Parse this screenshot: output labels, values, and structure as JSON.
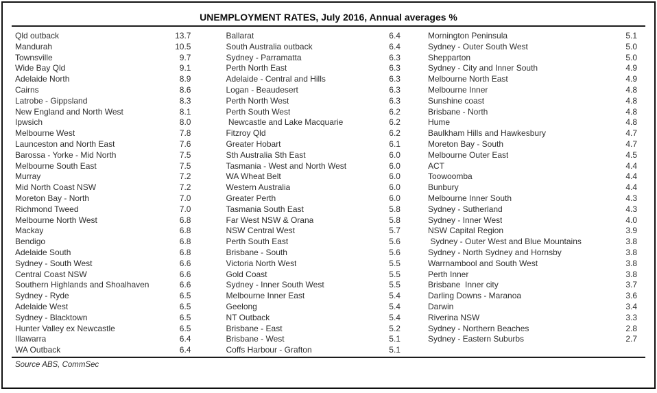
{
  "chart_data": {
    "type": "table",
    "title": "UNEMPLOYMENT RATES, July 2016, Annual averages %",
    "unit": "%",
    "source": "Source ABS, CommSec",
    "columns": [
      {
        "rows": [
          {
            "region": "Qld outback",
            "value": "13.7"
          },
          {
            "region": "Mandurah",
            "value": "10.5"
          },
          {
            "region": "Townsville",
            "value": "9.7"
          },
          {
            "region": "Wide Bay Qld",
            "value": "9.1"
          },
          {
            "region": "Adelaide North",
            "value": "8.9"
          },
          {
            "region": "Cairns",
            "value": "8.6"
          },
          {
            "region": "Latrobe - Gippsland",
            "value": "8.3"
          },
          {
            "region": "New England and North West",
            "value": "8.1"
          },
          {
            "region": "Ipwsich",
            "value": "8.0"
          },
          {
            "region": "Melbourne West",
            "value": "7.8"
          },
          {
            "region": "Launceston and North East",
            "value": "7.6"
          },
          {
            "region": "Barossa - Yorke - Mid North",
            "value": "7.5"
          },
          {
            "region": "Melbourne South East",
            "value": "7.5"
          },
          {
            "region": "Murray",
            "value": "7.2"
          },
          {
            "region": "Mid North Coast NSW",
            "value": "7.2"
          },
          {
            "region": "Moreton Bay - North",
            "value": "7.0"
          },
          {
            "region": "Richmond Tweed",
            "value": "7.0"
          },
          {
            "region": "Melbourne North West",
            "value": "6.8"
          },
          {
            "region": "Mackay",
            "value": "6.8"
          },
          {
            "region": "Bendigo",
            "value": "6.8"
          },
          {
            "region": "Adelaide South",
            "value": "6.8"
          },
          {
            "region": "Sydney - South West",
            "value": "6.6"
          },
          {
            "region": "Central Coast NSW",
            "value": "6.6"
          },
          {
            "region": "Southern Highlands and Shoalhaven",
            "value": "6.6"
          },
          {
            "region": "Sydney - Ryde",
            "value": "6.5"
          },
          {
            "region": "Adelaide West",
            "value": "6.5"
          },
          {
            "region": "Sydney - Blacktown",
            "value": "6.5"
          },
          {
            "region": "Hunter Valley ex Newcastle",
            "value": "6.5"
          },
          {
            "region": "Illawarra",
            "value": "6.4"
          },
          {
            "region": "WA Outback",
            "value": "6.4"
          }
        ]
      },
      {
        "rows": [
          {
            "region": "Ballarat",
            "value": "6.4"
          },
          {
            "region": "South Australia outback",
            "value": "6.4"
          },
          {
            "region": "Sydney - Parramatta",
            "value": "6.3"
          },
          {
            "region": "Perth North East",
            "value": "6.3"
          },
          {
            "region": "Adelaide - Central and Hills",
            "value": "6.3"
          },
          {
            "region": "Logan - Beaudesert",
            "value": "6.3"
          },
          {
            "region": "Perth North West",
            "value": "6.3"
          },
          {
            "region": "Perth South West",
            "value": "6.2"
          },
          {
            "region": " Newcastle and Lake Macquarie",
            "value": "6.2"
          },
          {
            "region": "Fitzroy Qld",
            "value": "6.2"
          },
          {
            "region": "Greater Hobart",
            "value": "6.1"
          },
          {
            "region": "Sth Australia Sth East",
            "value": "6.0"
          },
          {
            "region": "Tasmania - West and North West",
            "value": "6.0"
          },
          {
            "region": "WA Wheat Belt",
            "value": "6.0"
          },
          {
            "region": "Western Australia",
            "value": "6.0"
          },
          {
            "region": "Greater Perth",
            "value": "6.0"
          },
          {
            "region": "Tasmania South East",
            "value": "5.8"
          },
          {
            "region": "Far West NSW & Orana",
            "value": "5.8"
          },
          {
            "region": "NSW Central West",
            "value": "5.7"
          },
          {
            "region": "Perth South East",
            "value": "5.6"
          },
          {
            "region": "Brisbane - South",
            "value": "5.6"
          },
          {
            "region": "Victoria North West",
            "value": "5.5"
          },
          {
            "region": "Gold Coast",
            "value": "5.5"
          },
          {
            "region": "Sydney - Inner South West",
            "value": "5.5"
          },
          {
            "region": "Melbourne Inner East",
            "value": "5.4"
          },
          {
            "region": "Geelong",
            "value": "5.4"
          },
          {
            "region": "NT Outback",
            "value": "5.4"
          },
          {
            "region": "Brisbane - East",
            "value": "5.2"
          },
          {
            "region": "Brisbane - West",
            "value": "5.1"
          },
          {
            "region": "Coffs Harbour - Grafton",
            "value": "5.1"
          }
        ]
      },
      {
        "rows": [
          {
            "region": "Mornington Peninsula",
            "value": "5.1"
          },
          {
            "region": "Sydney - Outer South West",
            "value": "5.0"
          },
          {
            "region": "Shepparton",
            "value": "5.0"
          },
          {
            "region": "Sydney - City and Inner South",
            "value": "4.9"
          },
          {
            "region": "Melbourne North East",
            "value": "4.9"
          },
          {
            "region": "Melbourne Inner",
            "value": "4.8"
          },
          {
            "region": "Sunshine coast",
            "value": "4.8"
          },
          {
            "region": "Brisbane - North",
            "value": "4.8"
          },
          {
            "region": "Hume",
            "value": "4.8"
          },
          {
            "region": "Baulkham Hills and Hawkesbury",
            "value": "4.7"
          },
          {
            "region": "Moreton Bay - South",
            "value": "4.7"
          },
          {
            "region": "Melbourne Outer East",
            "value": "4.5"
          },
          {
            "region": "ACT",
            "value": "4.4"
          },
          {
            "region": "Toowoomba",
            "value": "4.4"
          },
          {
            "region": "Bunbury",
            "value": "4.4"
          },
          {
            "region": "Melbourne Inner South",
            "value": "4.3"
          },
          {
            "region": "Sydney - Sutherland",
            "value": "4.3"
          },
          {
            "region": "Sydney - Inner West",
            "value": "4.0"
          },
          {
            "region": "NSW Capital Region",
            "value": "3.9"
          },
          {
            "region": " Sydney - Outer West and Blue Mountains",
            "value": "3.8"
          },
          {
            "region": "Sydney - North Sydney and Hornsby",
            "value": "3.8"
          },
          {
            "region": "Warrnambool and South West",
            "value": "3.8"
          },
          {
            "region": "Perth Inner",
            "value": "3.8"
          },
          {
            "region": "Brisbane  Inner city",
            "value": "3.7"
          },
          {
            "region": "Darling Downs - Maranoa",
            "value": "3.6"
          },
          {
            "region": "Darwin",
            "value": "3.4"
          },
          {
            "region": "Riverina NSW",
            "value": "3.3"
          },
          {
            "region": "Sydney - Northern Beaches",
            "value": "2.8"
          },
          {
            "region": "Sydney - Eastern Suburbs",
            "value": "2.7"
          }
        ]
      }
    ]
  },
  "colors": {
    "background": "#ffffff",
    "border": "#101010",
    "text": "#2e2e2e"
  }
}
